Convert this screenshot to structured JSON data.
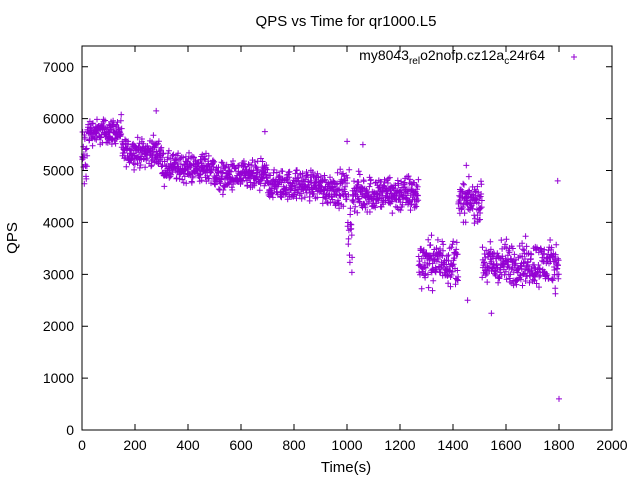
{
  "chart_data": {
    "type": "scatter",
    "title": "QPS vs Time for qr1000.L5",
    "xlabel": "Time(s)",
    "ylabel": "QPS",
    "xlim": [
      0,
      2000
    ],
    "ylim": [
      0,
      7400
    ],
    "grid": false,
    "legend_position": "top-right",
    "x_ticks": [
      "0",
      "200",
      "400",
      "600",
      "800",
      "1000",
      "1200",
      "1400",
      "1600",
      "1800",
      "2000"
    ],
    "y_ticks": [
      "0",
      "1000",
      "2000",
      "3000",
      "4000",
      "5000",
      "6000",
      "7000"
    ],
    "series": [
      {
        "name": "my8043_rel_o2nofp.cz12a_c24r64",
        "legend_parts": [
          {
            "text": "my8043",
            "sub": false
          },
          {
            "text": "rel",
            "sub": true
          },
          {
            "text": "o",
            "sub": false
          },
          {
            "text": "2nofp.cz12a",
            "sub": false
          },
          {
            "text": "c",
            "sub": true
          },
          {
            "text": "24r64",
            "sub": false
          }
        ],
        "color": "#9400d3",
        "marker": "plus",
        "segments": [
          {
            "x_start": 0,
            "x_end": 20,
            "mean": 5200,
            "spread": 500
          },
          {
            "x_start": 20,
            "x_end": 150,
            "mean": 5750,
            "spread": 170
          },
          {
            "x_start": 150,
            "x_end": 300,
            "mean": 5350,
            "spread": 180
          },
          {
            "x_start": 300,
            "x_end": 500,
            "mean": 5050,
            "spread": 200
          },
          {
            "x_start": 500,
            "x_end": 700,
            "mean": 4880,
            "spread": 200
          },
          {
            "x_start": 700,
            "x_end": 900,
            "mean": 4720,
            "spread": 200
          },
          {
            "x_start": 900,
            "x_end": 1000,
            "mean": 4650,
            "spread": 220
          },
          {
            "x_start": 1000,
            "x_end": 1020,
            "mean": 4000,
            "spread": 700
          },
          {
            "x_start": 1020,
            "x_end": 1270,
            "mean": 4550,
            "spread": 250
          },
          {
            "x_start": 1270,
            "x_end": 1380,
            "mean": 3250,
            "spread": 300
          },
          {
            "x_start": 1380,
            "x_end": 1420,
            "mean": 3250,
            "spread": 300
          },
          {
            "x_start": 1420,
            "x_end": 1510,
            "mean": 4400,
            "spread": 250
          },
          {
            "x_start": 1510,
            "x_end": 1800,
            "mean": 3200,
            "spread": 300
          }
        ],
        "outliers": [
          {
            "x": 280,
            "y": 6150
          },
          {
            "x": 690,
            "y": 5750
          },
          {
            "x": 1060,
            "y": 5500
          },
          {
            "x": 1450,
            "y": 5100
          },
          {
            "x": 1455,
            "y": 2500
          },
          {
            "x": 1545,
            "y": 2250
          },
          {
            "x": 1795,
            "y": 4800
          },
          {
            "x": 1800,
            "y": 600
          }
        ]
      }
    ]
  }
}
